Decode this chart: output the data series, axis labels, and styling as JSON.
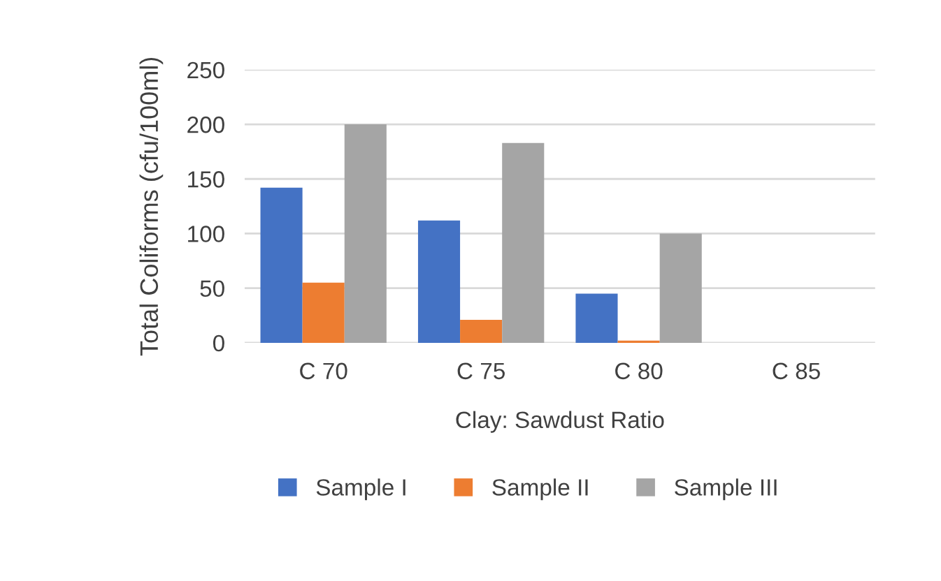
{
  "chart_data": {
    "type": "bar",
    "xlabel": "Clay: Sawdust Ratio",
    "ylabel": "Total Coliforms (cfu/100ml)",
    "categories": [
      "C 70",
      "C 75",
      "C 80",
      "C 85"
    ],
    "series": [
      {
        "name": "Sample I",
        "color": "#4472c4",
        "values": [
          142,
          112,
          45,
          0
        ]
      },
      {
        "name": "Sample II",
        "color": "#ed7d31",
        "values": [
          55,
          21,
          2,
          0
        ]
      },
      {
        "name": "Sample III",
        "color": "#a5a5a5",
        "values": [
          200,
          183,
          100,
          0
        ]
      }
    ],
    "ylim": [
      0,
      250
    ],
    "yticks": [
      0,
      50,
      100,
      150,
      200,
      250
    ],
    "grid": "y",
    "legend": "bottom"
  }
}
